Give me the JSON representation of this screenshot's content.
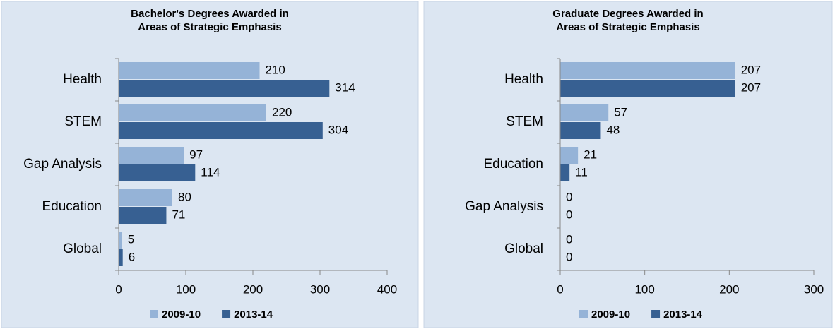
{
  "chart_data": [
    {
      "type": "barh",
      "title": [
        "Bachelor's Degrees Awarded in",
        "Areas of Strategic Emphasis"
      ],
      "categories": [
        "Health",
        "STEM",
        "Gap Analysis",
        "Education",
        "Global"
      ],
      "series": [
        {
          "name": "2009-10",
          "color": "#95b3d7",
          "values": [
            210,
            220,
            97,
            80,
            5
          ]
        },
        {
          "name": "2013-14",
          "color": "#376092",
          "values": [
            314,
            304,
            114,
            71,
            6
          ]
        }
      ],
      "xlim": [
        0,
        400
      ],
      "xticks": [
        0,
        100,
        200,
        300,
        400
      ],
      "grid": false,
      "legend": "bottom"
    },
    {
      "type": "barh",
      "title": [
        "Graduate Degrees Awarded in",
        "Areas of Strategic Emphasis"
      ],
      "categories": [
        "Health",
        "STEM",
        "Education",
        "Gap Analysis",
        "Global"
      ],
      "series": [
        {
          "name": "2009-10",
          "color": "#95b3d7",
          "values": [
            207,
            57,
            21,
            0,
            0
          ]
        },
        {
          "name": "2013-14",
          "color": "#376092",
          "values": [
            207,
            48,
            11,
            0,
            0
          ]
        }
      ],
      "xlim": [
        0,
        300
      ],
      "xticks": [
        0,
        100,
        200,
        300
      ],
      "grid": false,
      "legend": "bottom"
    }
  ]
}
